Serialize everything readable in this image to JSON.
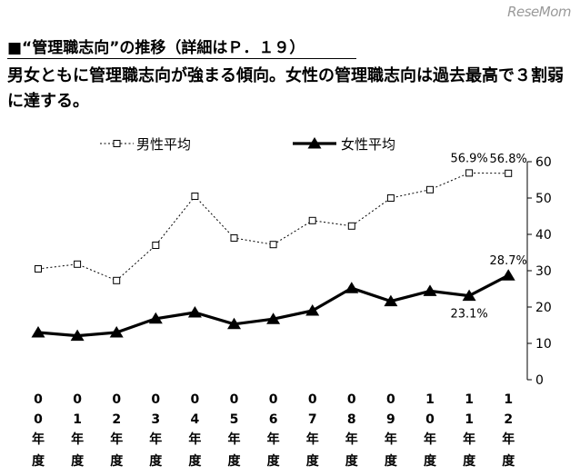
{
  "watermark": "ReseMom",
  "heading": "■“管理職志向”の推移（詳細はＰ．１９）",
  "subtitle": "男女ともに管理職志向が強まる傾向。女性の管理職志向は過去最高で３割弱に達する。",
  "chart_data": {
    "type": "line",
    "categories": [
      "00年度",
      "01年度",
      "02年度",
      "03年度",
      "04年度",
      "05年度",
      "06年度",
      "07年度",
      "08年度",
      "09年度",
      "10年度",
      "11年度",
      "12年度"
    ],
    "category_chars": [
      [
        "0",
        "0",
        "年",
        "度"
      ],
      [
        "0",
        "1",
        "年",
        "度"
      ],
      [
        "0",
        "2",
        "年",
        "度"
      ],
      [
        "0",
        "3",
        "年",
        "度"
      ],
      [
        "0",
        "4",
        "年",
        "度"
      ],
      [
        "0",
        "5",
        "年",
        "度"
      ],
      [
        "0",
        "6",
        "年",
        "度"
      ],
      [
        "0",
        "7",
        "年",
        "度"
      ],
      [
        "0",
        "8",
        "年",
        "度"
      ],
      [
        "0",
        "9",
        "年",
        "度"
      ],
      [
        "1",
        "0",
        "年",
        "度"
      ],
      [
        "1",
        "1",
        "年",
        "度"
      ],
      [
        "1",
        "2",
        "年",
        "度"
      ]
    ],
    "series": [
      {
        "name": "男性平均",
        "style": "dotted-square",
        "values": [
          30.5,
          31.8,
          27.3,
          37.0,
          50.5,
          39.0,
          37.2,
          43.8,
          42.3,
          50.0,
          52.3,
          56.9,
          56.8
        ]
      },
      {
        "name": "女性平均",
        "style": "solid-triangle",
        "values": [
          13.0,
          12.1,
          13.0,
          16.8,
          18.5,
          15.3,
          16.7,
          19.0,
          25.2,
          21.6,
          24.4,
          23.1,
          28.7
        ]
      }
    ],
    "data_labels": [
      {
        "series": 0,
        "index": 11,
        "text": "56.9%",
        "position": "above"
      },
      {
        "series": 0,
        "index": 12,
        "text": "56.8%",
        "position": "above"
      },
      {
        "series": 1,
        "index": 11,
        "text": "23.1%",
        "position": "below"
      },
      {
        "series": 1,
        "index": 12,
        "text": "28.7%",
        "position": "above"
      }
    ],
    "yaxis": {
      "side": "right",
      "ylim": [
        0,
        60
      ],
      "ticks": [
        "0",
        "10",
        "20",
        "30",
        "40",
        "50",
        "60"
      ]
    },
    "grid": false,
    "legend_position": "top"
  }
}
